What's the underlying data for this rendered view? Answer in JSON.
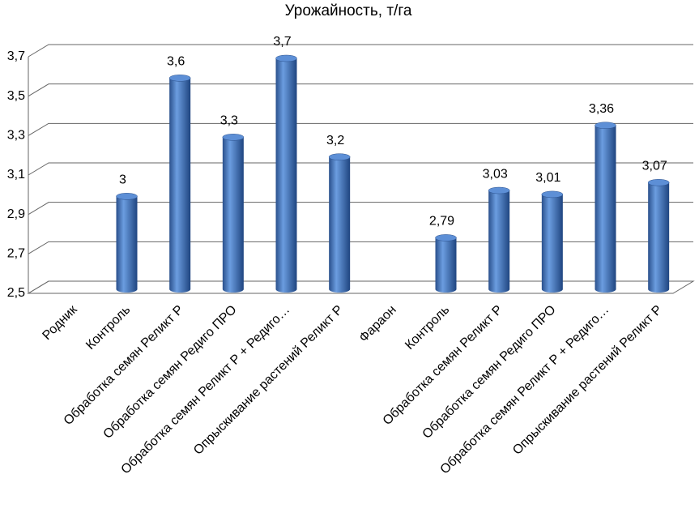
{
  "chart_data": {
    "type": "bar",
    "title": "Урожайность, т/га",
    "categories": [
      "Родник",
      "Контроль",
      "Обработка семян Реликт Р",
      "Обработка семян Редиго ПРО",
      "Обработка семян Реликт Р + Редиго…",
      "Опрыскивание растений Реликт Р",
      "Фараон",
      "Контроль",
      "Обработка семян Реликт Р",
      "Обработка семян Редиго ПРО",
      "Обработка семян Реликт Р + Редиго…",
      "Опрыскивание растений Реликт Р"
    ],
    "values": [
      null,
      3,
      3.6,
      3.3,
      3.7,
      3.2,
      null,
      2.79,
      3.03,
      3.01,
      3.36,
      3.07
    ],
    "value_labels": [
      null,
      "3",
      "3,6",
      "3,3",
      "3,7",
      "3,2",
      null,
      "2,79",
      "3,03",
      "3,01",
      "3,36",
      "3,07"
    ],
    "color": "#3a6db5",
    "ylim": [
      2.5,
      3.7
    ],
    "yticks": [
      {
        "value": 2.5,
        "label": "2,5"
      },
      {
        "value": 2.7,
        "label": "2,7"
      },
      {
        "value": 2.9,
        "label": "2,9"
      },
      {
        "value": 3.1,
        "label": "3,1"
      },
      {
        "value": 3.3,
        "label": "3,3"
      },
      {
        "value": 3.5,
        "label": "3,5"
      },
      {
        "value": 3.7,
        "label": "3,7"
      }
    ],
    "grid": true
  }
}
